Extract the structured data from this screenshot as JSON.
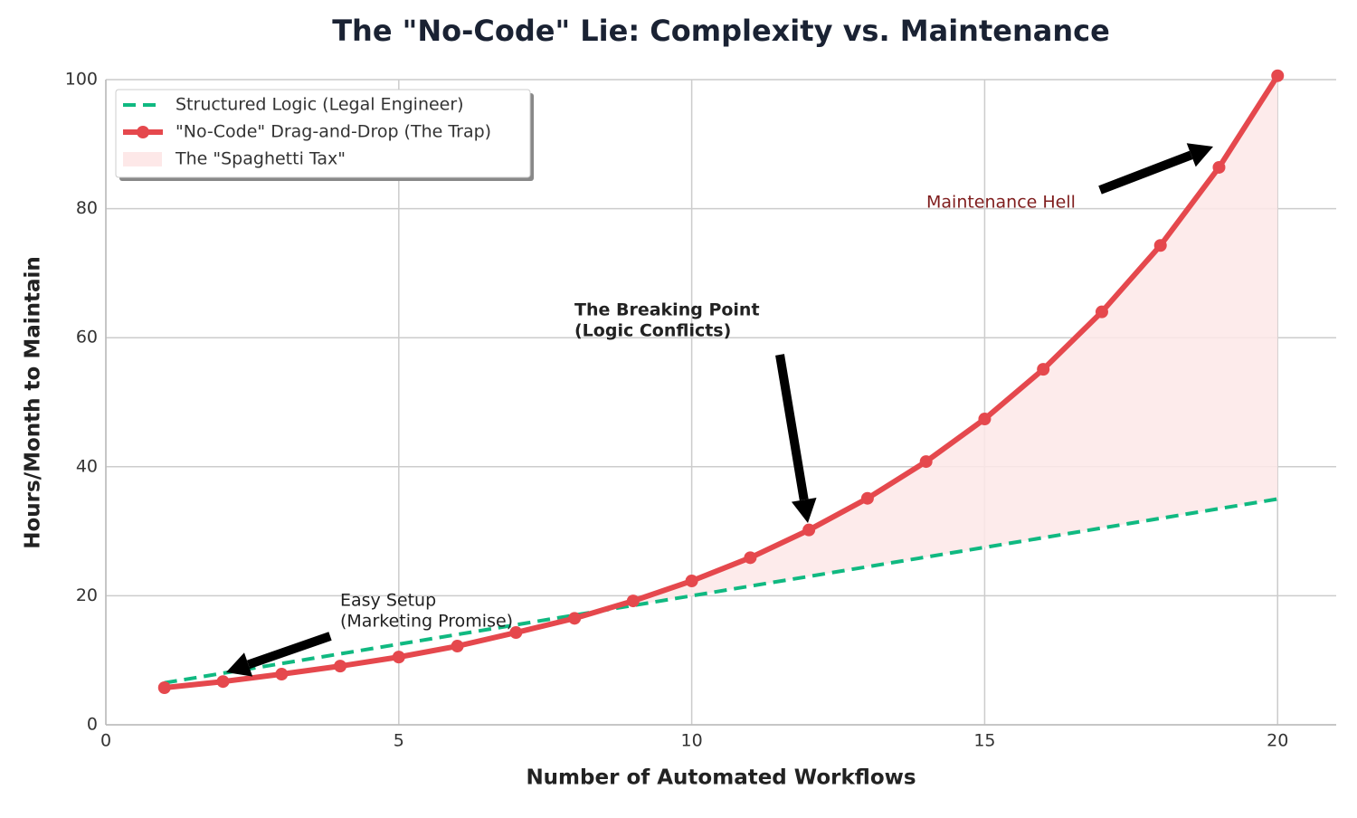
{
  "chart_data": {
    "type": "line",
    "title": "The \"No-Code\" Lie: Complexity vs. Maintenance",
    "x_label": "Number of Automated Workflows",
    "y_label": "Hours/Month to Maintain",
    "x": [
      1,
      2,
      3,
      4,
      5,
      6,
      7,
      8,
      9,
      10,
      11,
      12,
      13,
      14,
      15,
      16,
      17,
      18,
      19,
      20
    ],
    "series": [
      {
        "name": "Structured Logic (Legal Engineer)",
        "color": "#10b981",
        "dashed": true,
        "values": [
          6.5,
          8,
          9.5,
          11,
          12.5,
          14,
          15.5,
          17,
          18.5,
          20,
          21.5,
          23,
          24.5,
          26,
          27.5,
          29,
          30.5,
          32,
          33.5,
          35
        ]
      },
      {
        "name": "\"No-Code\" Drag-and-Drop (The Trap)",
        "color": "#e5484d",
        "markers": true,
        "values": [
          5.75,
          6.7,
          7.85,
          9.1,
          10.5,
          12.2,
          14.3,
          16.5,
          19.2,
          22.3,
          25.9,
          30.2,
          35.1,
          40.8,
          47.4,
          55.1,
          64.0,
          74.3,
          86.4,
          100.6
        ]
      }
    ],
    "fill_between": {
      "name": "The \"Spaghetti Tax\"",
      "color": "#fde8e8"
    },
    "annotations": [
      {
        "lines": [
          "Easy Setup",
          "(Marketing Promise)"
        ],
        "color": "#222222",
        "bold": false
      },
      {
        "lines": [
          "The Breaking Point",
          "(Logic Conflicts)"
        ],
        "color": "#222222",
        "bold": true
      },
      {
        "lines": [
          "Maintenance Hell"
        ],
        "color": "#7f1d1d",
        "bold": false
      }
    ],
    "xlim": [
      0,
      21
    ],
    "ylim": [
      0,
      100
    ],
    "xticks": [
      0,
      5,
      10,
      15,
      20
    ],
    "yticks": [
      0,
      20,
      40,
      60,
      80,
      100
    ],
    "grid": true,
    "legend": "upper left"
  }
}
